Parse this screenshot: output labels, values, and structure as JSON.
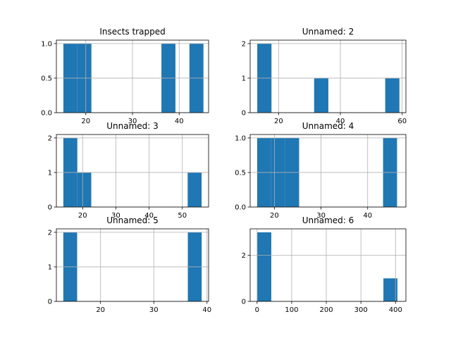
{
  "colors": {
    "bar": "#1f77b4",
    "grid": "#b0b0b0",
    "axis": "#000000",
    "background": "#ffffff"
  },
  "chart_data": [
    {
      "type": "bar",
      "title": "Insects trapped",
      "grid": true,
      "xlim": [
        13.7,
        46.3
      ],
      "ylim": [
        0,
        1.05
      ],
      "xticks": [
        20,
        30,
        40
      ],
      "xtick_labels": [
        "20",
        "30",
        "40"
      ],
      "yticks": [
        0.0,
        0.5,
        1.0
      ],
      "ytick_labels": [
        "0.0",
        "0.5",
        "1.0"
      ],
      "bins": [
        [
          15.2,
          18.2,
          1
        ],
        [
          18.2,
          21.2,
          1
        ],
        [
          36.2,
          39.2,
          1
        ],
        [
          42.2,
          45.2,
          1
        ]
      ]
    },
    {
      "type": "bar",
      "title": "Unnamed: 2",
      "grid": true,
      "xlim": [
        10.8,
        61.2
      ],
      "ylim": [
        0,
        2.1
      ],
      "xticks": [
        20,
        40,
        60
      ],
      "xtick_labels": [
        "20",
        "40",
        "60"
      ],
      "yticks": [
        0,
        1,
        2
      ],
      "ytick_labels": [
        "0",
        "1",
        "2"
      ],
      "bins": [
        [
          13.1,
          17.7,
          2
        ],
        [
          31.5,
          36.1,
          1
        ],
        [
          54.5,
          59.1,
          1
        ]
      ]
    },
    {
      "type": "bar",
      "title": "Unnamed: 3",
      "grid": true,
      "xlim": [
        12.1,
        57.9
      ],
      "ylim": [
        0,
        2.1
      ],
      "xticks": [
        20,
        30,
        40,
        50
      ],
      "xtick_labels": [
        "20",
        "30",
        "40",
        "50"
      ],
      "yticks": [
        0,
        1,
        2
      ],
      "ytick_labels": [
        "0",
        "1",
        "2"
      ],
      "bins": [
        [
          14.2,
          18.4,
          2
        ],
        [
          18.4,
          22.6,
          1
        ],
        [
          51.6,
          55.8,
          1
        ]
      ]
    },
    {
      "type": "bar",
      "title": "Unnamed: 4",
      "grid": true,
      "xlim": [
        14.8,
        48.2
      ],
      "ylim": [
        0,
        1.05
      ],
      "xticks": [
        20,
        30,
        40
      ],
      "xtick_labels": [
        "20",
        "30",
        "40"
      ],
      "yticks": [
        0.0,
        0.5,
        1.0
      ],
      "ytick_labels": [
        "0.0",
        "0.5",
        "1.0"
      ],
      "bins": [
        [
          16.3,
          19.3,
          1
        ],
        [
          19.3,
          22.3,
          1
        ],
        [
          22.3,
          25.3,
          1
        ],
        [
          43.3,
          46.3,
          1
        ]
      ]
    },
    {
      "type": "bar",
      "title": "Unnamed: 5",
      "grid": true,
      "xlim": [
        11.7,
        40.3
      ],
      "ylim": [
        0,
        2.1
      ],
      "xticks": [
        20,
        30,
        40
      ],
      "xtick_labels": [
        "20",
        "30",
        "40"
      ],
      "yticks": [
        0,
        1,
        2
      ],
      "ytick_labels": [
        "0",
        "1",
        "2"
      ],
      "bins": [
        [
          13.0,
          15.6,
          2
        ],
        [
          36.4,
          39.0,
          2
        ]
      ]
    },
    {
      "type": "bar",
      "title": "Unnamed: 6",
      "grid": true,
      "xlim": [
        -20,
        430
      ],
      "ylim": [
        0,
        3.15
      ],
      "xticks": [
        0,
        100,
        200,
        300,
        400
      ],
      "xtick_labels": [
        "0",
        "100",
        "200",
        "300",
        "400"
      ],
      "yticks": [
        0,
        2
      ],
      "ytick_labels": [
        "0",
        "2"
      ],
      "bins": [
        [
          0.5,
          41.0,
          3
        ],
        [
          365.0,
          405.5,
          1
        ]
      ]
    }
  ]
}
